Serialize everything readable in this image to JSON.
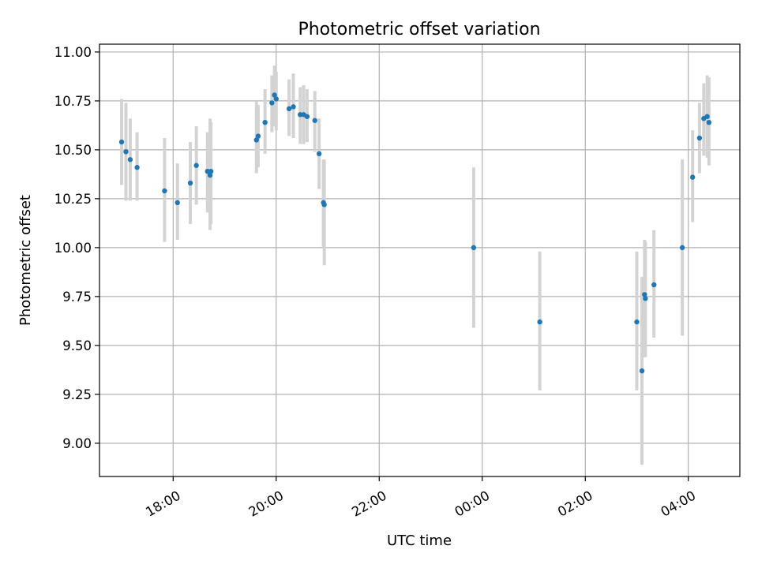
{
  "chart_data": {
    "type": "scatter",
    "title": "Photometric offset variation",
    "xlabel": "UTC time",
    "ylabel": "Photometric offset",
    "x_ticks": [
      "18:00",
      "20:00",
      "22:00",
      "00:00",
      "02:00",
      "04:00"
    ],
    "x_ticks_hours": [
      18,
      20,
      22,
      24,
      26,
      28
    ],
    "y_ticks": [
      "9.00",
      "9.25",
      "9.50",
      "9.75",
      "10.00",
      "10.25",
      "10.50",
      "10.75",
      "11.00"
    ],
    "y_ticks_values": [
      9.0,
      9.25,
      9.5,
      9.75,
      10.0,
      10.25,
      10.5,
      10.75,
      11.0
    ],
    "xlim_hours": [
      16.57,
      29.0
    ],
    "ylim": [
      8.83,
      11.04
    ],
    "grid": true,
    "x_tick_rotation": "30deg",
    "colors": {
      "marker": "#1f77b4",
      "error_bar": "#d3d3d3",
      "grid": "#b0b0b0"
    },
    "points": [
      {
        "t": "17:00",
        "y": 10.54,
        "lo": 10.32,
        "hi": 10.76
      },
      {
        "t": "17:05",
        "y": 10.49,
        "lo": 10.24,
        "hi": 10.74
      },
      {
        "t": "17:10",
        "y": 10.45,
        "lo": 10.24,
        "hi": 10.66
      },
      {
        "t": "17:18",
        "y": 10.41,
        "lo": 10.24,
        "hi": 10.59
      },
      {
        "t": "17:50",
        "y": 10.29,
        "lo": 10.03,
        "hi": 10.56
      },
      {
        "t": "18:05",
        "y": 10.23,
        "lo": 10.04,
        "hi": 10.43
      },
      {
        "t": "18:20",
        "y": 10.33,
        "lo": 10.12,
        "hi": 10.54
      },
      {
        "t": "18:27",
        "y": 10.42,
        "lo": 10.22,
        "hi": 10.62
      },
      {
        "t": "18:40",
        "y": 10.39,
        "lo": 10.18,
        "hi": 10.59
      },
      {
        "t": "18:43",
        "y": 10.37,
        "lo": 10.09,
        "hi": 10.66
      },
      {
        "t": "18:44",
        "y": 10.39,
        "lo": 10.12,
        "hi": 10.64
      },
      {
        "t": "19:37",
        "y": 10.55,
        "lo": 10.38,
        "hi": 10.75
      },
      {
        "t": "19:39",
        "y": 10.57,
        "lo": 10.41,
        "hi": 10.73
      },
      {
        "t": "19:47",
        "y": 10.64,
        "lo": 10.48,
        "hi": 10.81
      },
      {
        "t": "19:55",
        "y": 10.74,
        "lo": 10.59,
        "hi": 10.88
      },
      {
        "t": "19:58",
        "y": 10.78,
        "lo": 10.62,
        "hi": 10.93
      },
      {
        "t": "20:00",
        "y": 10.76,
        "lo": 10.6,
        "hi": 10.9
      },
      {
        "t": "20:15",
        "y": 10.71,
        "lo": 10.57,
        "hi": 10.86
      },
      {
        "t": "20:20",
        "y": 10.72,
        "lo": 10.56,
        "hi": 10.89
      },
      {
        "t": "20:28",
        "y": 10.68,
        "lo": 10.53,
        "hi": 10.82
      },
      {
        "t": "20:32",
        "y": 10.68,
        "lo": 10.53,
        "hi": 10.83
      },
      {
        "t": "20:36",
        "y": 10.67,
        "lo": 10.54,
        "hi": 10.81
      },
      {
        "t": "20:45",
        "y": 10.65,
        "lo": 10.49,
        "hi": 10.8
      },
      {
        "t": "20:50",
        "y": 10.48,
        "lo": 10.3,
        "hi": 10.66
      },
      {
        "t": "20:55",
        "y": 10.23,
        "lo": 10.0,
        "hi": 10.45
      },
      {
        "t": "20:56",
        "y": 10.22,
        "lo": 9.91,
        "hi": 10.45
      },
      {
        "t": "23:50",
        "y": 10.0,
        "lo": 9.59,
        "hi": 10.41
      },
      {
        "t": "01:07",
        "y": 9.62,
        "lo": 9.27,
        "hi": 9.98
      },
      {
        "t": "03:00",
        "y": 9.62,
        "lo": 9.27,
        "hi": 9.98
      },
      {
        "t": "03:06",
        "y": 9.37,
        "lo": 8.89,
        "hi": 9.85
      },
      {
        "t": "03:09",
        "y": 9.76,
        "lo": 9.44,
        "hi": 10.04
      },
      {
        "t": "03:10",
        "y": 9.74,
        "lo": 9.44,
        "hi": 10.03
      },
      {
        "t": "03:20",
        "y": 9.81,
        "lo": 9.54,
        "hi": 10.09
      },
      {
        "t": "03:53",
        "y": 10.0,
        "lo": 9.55,
        "hi": 10.45
      },
      {
        "t": "04:05",
        "y": 10.36,
        "lo": 10.13,
        "hi": 10.6
      },
      {
        "t": "04:13",
        "y": 10.56,
        "lo": 10.38,
        "hi": 10.74
      },
      {
        "t": "04:18",
        "y": 10.66,
        "lo": 10.47,
        "hi": 10.84
      },
      {
        "t": "04:22",
        "y": 10.67,
        "lo": 10.46,
        "hi": 10.88
      },
      {
        "t": "04:24",
        "y": 10.64,
        "lo": 10.42,
        "hi": 10.87
      }
    ]
  }
}
